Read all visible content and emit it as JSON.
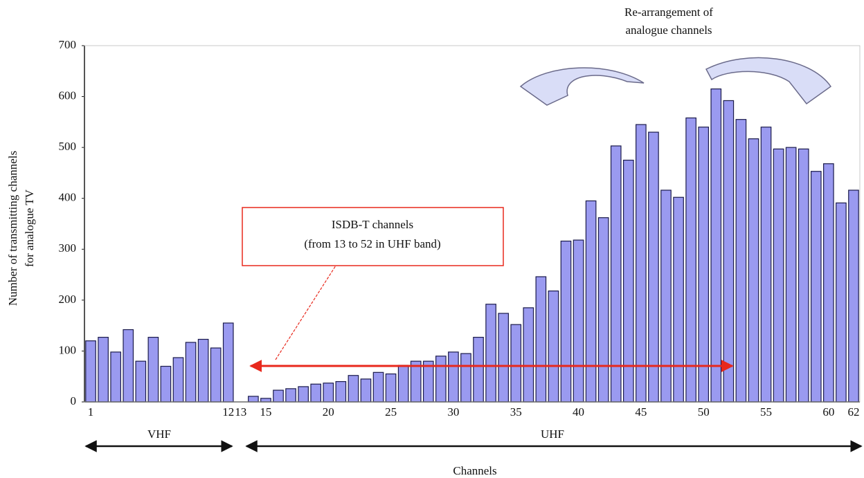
{
  "chart_data": {
    "type": "bar",
    "title_lines": [
      "Re-arrangement of",
      "analogue channels"
    ],
    "y_label_lines": [
      "Number of transmitting channels",
      "for analogue TV"
    ],
    "x_label": "Channels",
    "box_lines": [
      "ISDB-T channels",
      "(from 13 to 52 in UHF band)"
    ],
    "bands": [
      "VHF",
      "UHF"
    ],
    "color": "#9a9af0",
    "categories": [
      1,
      null,
      null,
      null,
      null,
      null,
      null,
      null,
      null,
      null,
      null,
      12,
      13,
      null,
      15,
      null,
      null,
      null,
      null,
      20,
      null,
      null,
      null,
      null,
      25,
      null,
      null,
      null,
      null,
      30,
      null,
      null,
      null,
      null,
      35,
      null,
      null,
      null,
      null,
      40,
      null,
      null,
      null,
      null,
      45,
      null,
      null,
      null,
      null,
      50,
      null,
      null,
      null,
      null,
      55,
      null,
      null,
      null,
      null,
      60,
      null,
      62
    ],
    "values": [
      120,
      127,
      98,
      142,
      80,
      127,
      70,
      87,
      117,
      123,
      106,
      155,
      0,
      11,
      7,
      23,
      26,
      30,
      35,
      37,
      40,
      52,
      45,
      58,
      55,
      72,
      80,
      80,
      90,
      98,
      95,
      127,
      192,
      174,
      152,
      185,
      246,
      218,
      316,
      318,
      395,
      362,
      503,
      475,
      545,
      530,
      416,
      402,
      558,
      540,
      615,
      592,
      555,
      517,
      540,
      497,
      500,
      497,
      453,
      468,
      391,
      416
    ],
    "ylim": [
      0,
      700
    ],
    "yticks": [
      0,
      100,
      200,
      300,
      400,
      500,
      600,
      700
    ],
    "grid": false
  }
}
